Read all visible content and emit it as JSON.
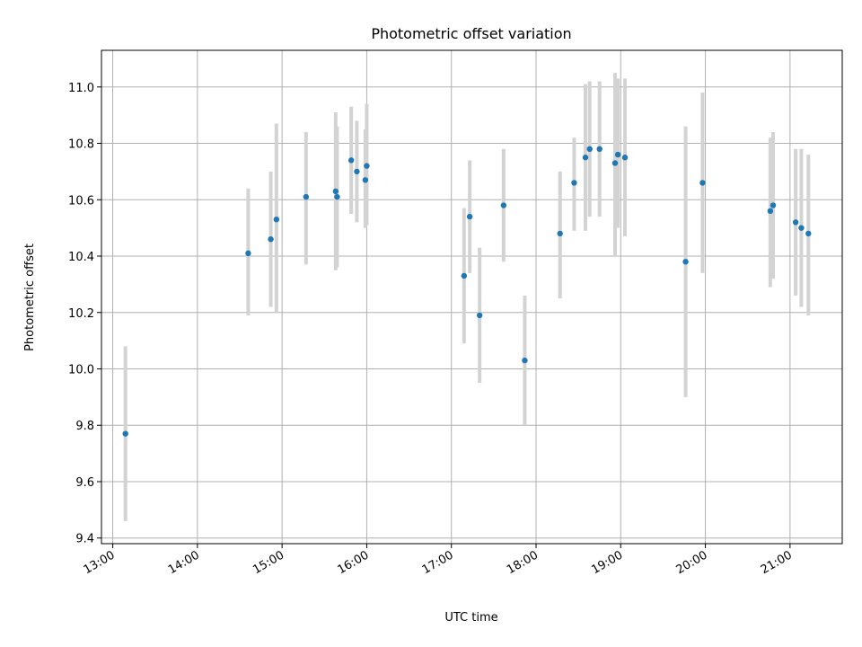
{
  "chart_data": {
    "type": "scatter",
    "title": "Photometric offset variation",
    "xlabel": "UTC time",
    "ylabel": "Photometric offset",
    "x_tick_labels": [
      "13:00",
      "14:00",
      "15:00",
      "16:00",
      "17:00",
      "18:00",
      "19:00",
      "20:00",
      "21:00"
    ],
    "y_ticks": [
      9.4,
      9.6,
      9.8,
      10.0,
      10.2,
      10.4,
      10.6,
      10.8,
      11.0
    ],
    "y_tick_labels": [
      "9.4",
      "9.6",
      "9.8",
      "10.0",
      "10.2",
      "10.4",
      "10.6",
      "10.8",
      "11.0"
    ],
    "xlim": [
      "12:52",
      "21:37"
    ],
    "ylim": [
      9.38,
      11.13
    ],
    "grid": true,
    "colors": {
      "point": "#1f77b4",
      "errorbar": "#d3d3d3",
      "grid": "#b0b0b0"
    },
    "points": [
      {
        "x": "13:09",
        "y": 9.77,
        "low": 9.46,
        "high": 10.08
      },
      {
        "x": "14:36",
        "y": 10.41,
        "low": 10.19,
        "high": 10.64
      },
      {
        "x": "14:52",
        "y": 10.46,
        "low": 10.22,
        "high": 10.7
      },
      {
        "x": "14:56",
        "y": 10.53,
        "low": 10.2,
        "high": 10.87
      },
      {
        "x": "15:17",
        "y": 10.61,
        "low": 10.37,
        "high": 10.84
      },
      {
        "x": "15:38",
        "y": 10.63,
        "low": 10.35,
        "high": 10.91
      },
      {
        "x": "15:39",
        "y": 10.61,
        "low": 10.36,
        "high": 10.86
      },
      {
        "x": "15:49",
        "y": 10.74,
        "low": 10.55,
        "high": 10.93
      },
      {
        "x": "15:53",
        "y": 10.7,
        "low": 10.52,
        "high": 10.88
      },
      {
        "x": "15:59",
        "y": 10.67,
        "low": 10.5,
        "high": 10.85
      },
      {
        "x": "16:00",
        "y": 10.72,
        "low": 10.51,
        "high": 10.94
      },
      {
        "x": "17:09",
        "y": 10.33,
        "low": 10.09,
        "high": 10.57
      },
      {
        "x": "17:13",
        "y": 10.54,
        "low": 10.34,
        "high": 10.74
      },
      {
        "x": "17:20",
        "y": 10.19,
        "low": 9.95,
        "high": 10.43
      },
      {
        "x": "17:37",
        "y": 10.58,
        "low": 10.38,
        "high": 10.78
      },
      {
        "x": "17:52",
        "y": 10.03,
        "low": 9.8,
        "high": 10.26
      },
      {
        "x": "18:17",
        "y": 10.48,
        "low": 10.25,
        "high": 10.7
      },
      {
        "x": "18:27",
        "y": 10.66,
        "low": 10.49,
        "high": 10.82
      },
      {
        "x": "18:35",
        "y": 10.75,
        "low": 10.49,
        "high": 11.01
      },
      {
        "x": "18:38",
        "y": 10.78,
        "low": 10.54,
        "high": 11.02
      },
      {
        "x": "18:45",
        "y": 10.78,
        "low": 10.54,
        "high": 11.02
      },
      {
        "x": "18:56",
        "y": 10.73,
        "low": 10.4,
        "high": 11.05
      },
      {
        "x": "18:58",
        "y": 10.76,
        "low": 10.5,
        "high": 11.03
      },
      {
        "x": "19:03",
        "y": 10.75,
        "low": 10.47,
        "high": 11.03
      },
      {
        "x": "19:46",
        "y": 10.38,
        "low": 9.9,
        "high": 10.86
      },
      {
        "x": "19:58",
        "y": 10.66,
        "low": 10.34,
        "high": 10.98
      },
      {
        "x": "20:46",
        "y": 10.56,
        "low": 10.29,
        "high": 10.82
      },
      {
        "x": "20:48",
        "y": 10.58,
        "low": 10.32,
        "high": 10.84
      },
      {
        "x": "21:04",
        "y": 10.52,
        "low": 10.26,
        "high": 10.78
      },
      {
        "x": "21:08",
        "y": 10.5,
        "low": 10.22,
        "high": 10.78
      },
      {
        "x": "21:13",
        "y": 10.48,
        "low": 10.19,
        "high": 10.76
      }
    ]
  }
}
